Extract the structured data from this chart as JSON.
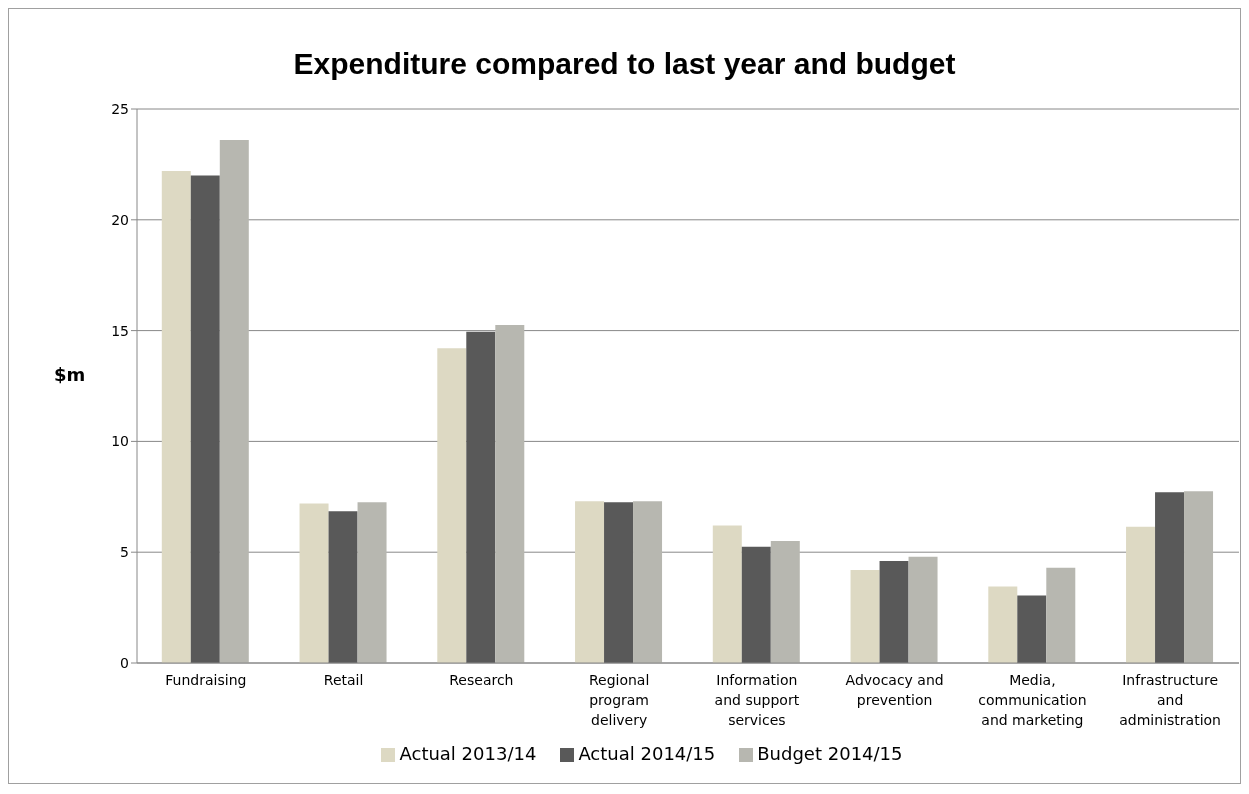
{
  "chart_data": {
    "type": "bar",
    "title": "Expenditure compared to last year and budget",
    "ylabel": "$m",
    "categories": [
      "Fundraising",
      "Retail",
      "Research",
      "Regional program delivery",
      "Information and support services",
      "Advocacy and prevention",
      "Media, communication and marketing",
      "Infrastructure and administration"
    ],
    "series": [
      {
        "name": "Actual 2013/14",
        "color": "#ddd9c3",
        "values": [
          22.2,
          7.2,
          14.2,
          7.3,
          6.2,
          4.2,
          3.45,
          6.15
        ]
      },
      {
        "name": "Actual 2014/15",
        "color": "#595959",
        "values": [
          22.0,
          6.85,
          14.95,
          7.25,
          5.25,
          4.6,
          3.05,
          7.7
        ]
      },
      {
        "name": "Budget 2014/15",
        "color": "#b7b7b0",
        "values": [
          23.6,
          7.25,
          15.25,
          7.3,
          5.5,
          4.8,
          4.3,
          7.75
        ]
      }
    ],
    "ylim": [
      0,
      25
    ],
    "yticks": [
      0,
      5,
      10,
      15,
      20,
      25
    ],
    "grid": "y",
    "legend": "bottom"
  }
}
